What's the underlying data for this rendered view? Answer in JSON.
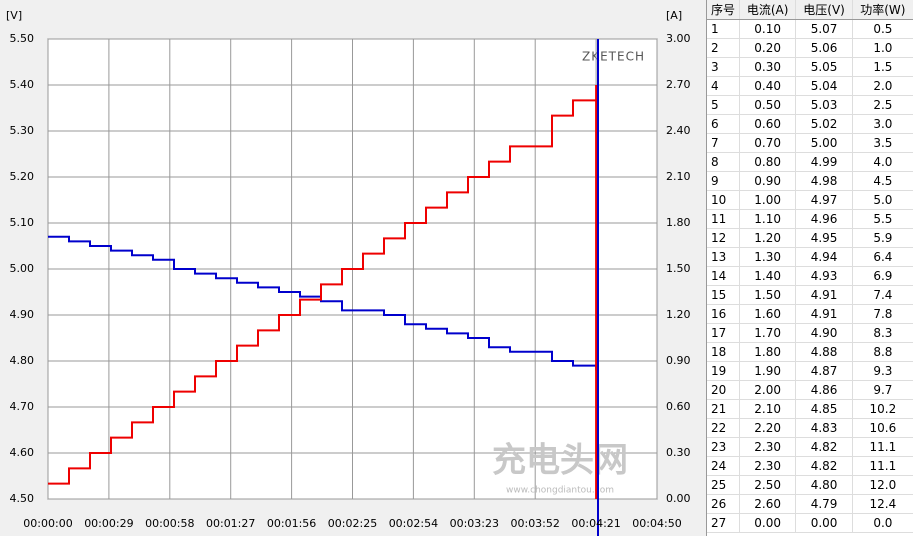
{
  "chart_data": {
    "type": "step-line",
    "y_unit_label": "[V]",
    "y2_unit_label": "[A]",
    "brand": "ZKETECH",
    "watermark": "充电头网",
    "watermark_url": "www.chongdiantou.com",
    "x": [
      0,
      10,
      20,
      30,
      40,
      50,
      60,
      70,
      80,
      90,
      100,
      110,
      120,
      130,
      140,
      150,
      160,
      170,
      180,
      190,
      200,
      210,
      220,
      230,
      240,
      250,
      261,
      261
    ],
    "series": [
      {
        "color": "#0000cc",
        "axis": "y",
        "values": [
          5.07,
          5.06,
          5.05,
          5.04,
          5.03,
          5.02,
          5.0,
          4.99,
          4.98,
          4.97,
          4.96,
          4.95,
          4.94,
          4.93,
          4.91,
          4.91,
          4.9,
          4.88,
          4.87,
          4.86,
          4.85,
          4.83,
          4.82,
          4.82,
          4.8,
          4.79,
          4.78,
          null
        ]
      },
      {
        "color": "#ee0000",
        "axis": "y2",
        "values": [
          0.1,
          0.2,
          0.3,
          0.4,
          0.5,
          0.6,
          0.7,
          0.8,
          0.9,
          1.0,
          1.1,
          1.2,
          1.3,
          1.4,
          1.5,
          1.6,
          1.7,
          1.8,
          1.9,
          2.0,
          2.1,
          2.2,
          2.3,
          2.3,
          2.5,
          2.6,
          2.7,
          0.0
        ]
      }
    ],
    "xlim": [
      0,
      290
    ],
    "xticks": [
      {
        "value": 0,
        "label": "00:00:00"
      },
      {
        "value": 29,
        "label": "00:00:29"
      },
      {
        "value": 58,
        "label": "00:00:58"
      },
      {
        "value": 87,
        "label": "00:01:27"
      },
      {
        "value": 116,
        "label": "00:01:56"
      },
      {
        "value": 145,
        "label": "00:02:25"
      },
      {
        "value": 174,
        "label": "00:02:54"
      },
      {
        "value": 203,
        "label": "00:03:23"
      },
      {
        "value": 232,
        "label": "00:03:52"
      },
      {
        "value": 261,
        "label": "00:04:21"
      },
      {
        "value": 290,
        "label": "00:04:50"
      }
    ],
    "ylim": [
      4.5,
      5.5
    ],
    "yticks": [
      {
        "value": 4.5,
        "label": "4.50"
      },
      {
        "value": 4.6,
        "label": "4.60"
      },
      {
        "value": 4.7,
        "label": "4.70"
      },
      {
        "value": 4.8,
        "label": "4.80"
      },
      {
        "value": 4.9,
        "label": "4.90"
      },
      {
        "value": 5.0,
        "label": "5.00"
      },
      {
        "value": 5.1,
        "label": "5.10"
      },
      {
        "value": 5.2,
        "label": "5.20"
      },
      {
        "value": 5.3,
        "label": "5.30"
      },
      {
        "value": 5.4,
        "label": "5.40"
      },
      {
        "value": 5.5,
        "label": "5.50"
      }
    ],
    "y2lim": [
      0,
      3
    ],
    "y2ticks": [
      {
        "value": 0,
        "label": "0.00"
      },
      {
        "value": 0.3,
        "label": "0.30"
      },
      {
        "value": 0.6,
        "label": "0.60"
      },
      {
        "value": 0.9,
        "label": "0.90"
      },
      {
        "value": 1.2,
        "label": "1.20"
      },
      {
        "value": 1.5,
        "label": "1.50"
      },
      {
        "value": 1.8,
        "label": "1.80"
      },
      {
        "value": 2.1,
        "label": "2.10"
      },
      {
        "value": 2.4,
        "label": "2.40"
      },
      {
        "value": 2.7,
        "label": "2.70"
      },
      {
        "value": 3,
        "label": "3.00"
      }
    ],
    "grid": true
  },
  "table": {
    "header": [
      "序号",
      "电流(A)",
      "电压(V)",
      "功率(W)"
    ],
    "rows": [
      [
        "1",
        "0.10",
        "5.07",
        "0.5"
      ],
      [
        "2",
        "0.20",
        "5.06",
        "1.0"
      ],
      [
        "3",
        "0.30",
        "5.05",
        "1.5"
      ],
      [
        "4",
        "0.40",
        "5.04",
        "2.0"
      ],
      [
        "5",
        "0.50",
        "5.03",
        "2.5"
      ],
      [
        "6",
        "0.60",
        "5.02",
        "3.0"
      ],
      [
        "7",
        "0.70",
        "5.00",
        "3.5"
      ],
      [
        "8",
        "0.80",
        "4.99",
        "4.0"
      ],
      [
        "9",
        "0.90",
        "4.98",
        "4.5"
      ],
      [
        "10",
        "1.00",
        "4.97",
        "5.0"
      ],
      [
        "11",
        "1.10",
        "4.96",
        "5.5"
      ],
      [
        "12",
        "1.20",
        "4.95",
        "5.9"
      ],
      [
        "13",
        "1.30",
        "4.94",
        "6.4"
      ],
      [
        "14",
        "1.40",
        "4.93",
        "6.9"
      ],
      [
        "15",
        "1.50",
        "4.91",
        "7.4"
      ],
      [
        "16",
        "1.60",
        "4.91",
        "7.8"
      ],
      [
        "17",
        "1.70",
        "4.90",
        "8.3"
      ],
      [
        "18",
        "1.80",
        "4.88",
        "8.8"
      ],
      [
        "19",
        "1.90",
        "4.87",
        "9.3"
      ],
      [
        "20",
        "2.00",
        "4.86",
        "9.7"
      ],
      [
        "21",
        "2.10",
        "4.85",
        "10.2"
      ],
      [
        "22",
        "2.20",
        "4.83",
        "10.6"
      ],
      [
        "23",
        "2.30",
        "4.82",
        "11.1"
      ],
      [
        "24",
        "2.30",
        "4.82",
        "11.1"
      ],
      [
        "25",
        "2.50",
        "4.80",
        "12.0"
      ],
      [
        "26",
        "2.60",
        "4.79",
        "12.4"
      ],
      [
        "27",
        "0.00",
        "0.00",
        "0.0"
      ]
    ]
  }
}
